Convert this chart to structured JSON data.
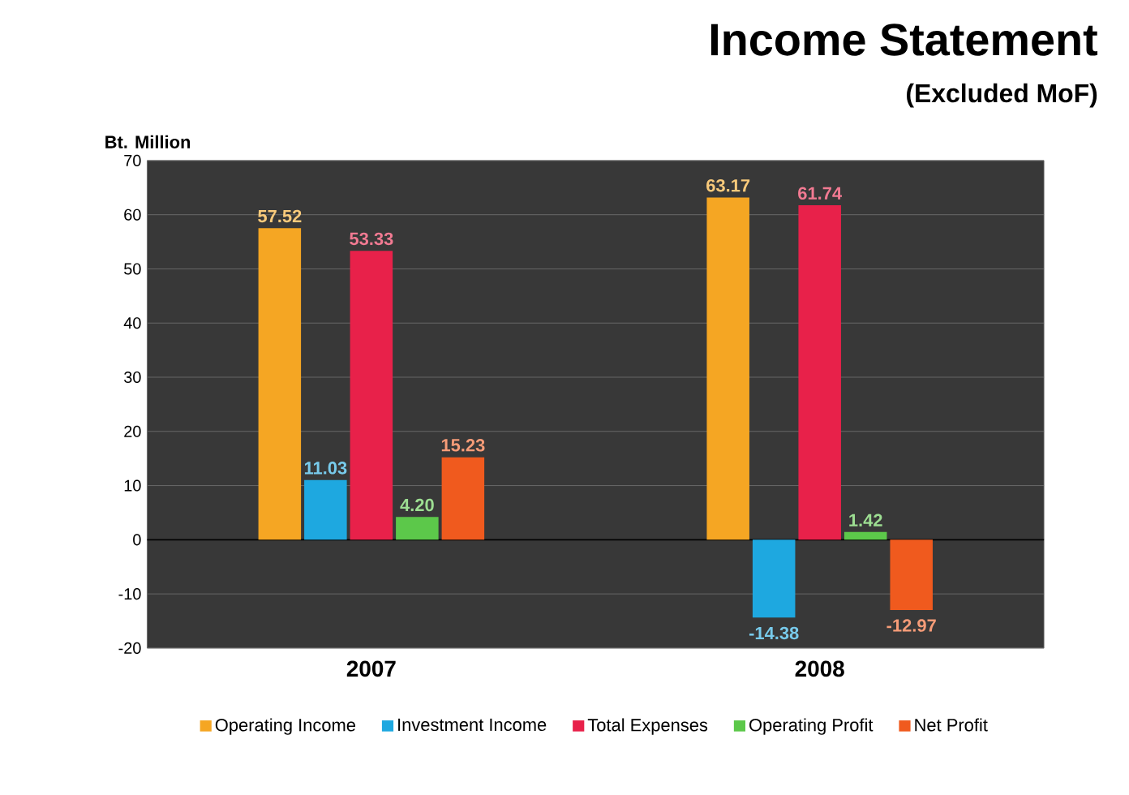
{
  "chart_data": {
    "type": "bar",
    "title": "Income Statement",
    "subtitle": "(Excluded MoF)",
    "ylabel": "Bt. Million",
    "categories": [
      "2007",
      "2008"
    ],
    "series": [
      {
        "name": "Operating Income",
        "color": "#f5a623",
        "values": [
          57.52,
          63.17
        ],
        "value_labels": [
          "57.52",
          "63.17"
        ]
      },
      {
        "name": "Investment Income",
        "color": "#1ea8e0",
        "values": [
          11.03,
          -14.38
        ],
        "value_labels": [
          "11.03",
          "-14.38"
        ]
      },
      {
        "name": "Total Expenses",
        "color": "#e8214a",
        "values": [
          53.33,
          61.74
        ],
        "value_labels": [
          "53.33",
          "61.74"
        ]
      },
      {
        "name": "Operating Profit",
        "color": "#5cc84a",
        "values": [
          4.2,
          1.42
        ],
        "value_labels": [
          "4.20",
          "1.42"
        ]
      },
      {
        "name": "Net Profit",
        "color": "#f05a1e",
        "values": [
          15.23,
          -12.97
        ],
        "value_labels": [
          "15.23",
          "-12.97"
        ]
      }
    ],
    "ylim": [
      -20,
      70
    ],
    "yticks": [
      -20,
      -10,
      0,
      10,
      20,
      30,
      40,
      50,
      60,
      70
    ],
    "grid": "y",
    "legend": "bottom"
  }
}
